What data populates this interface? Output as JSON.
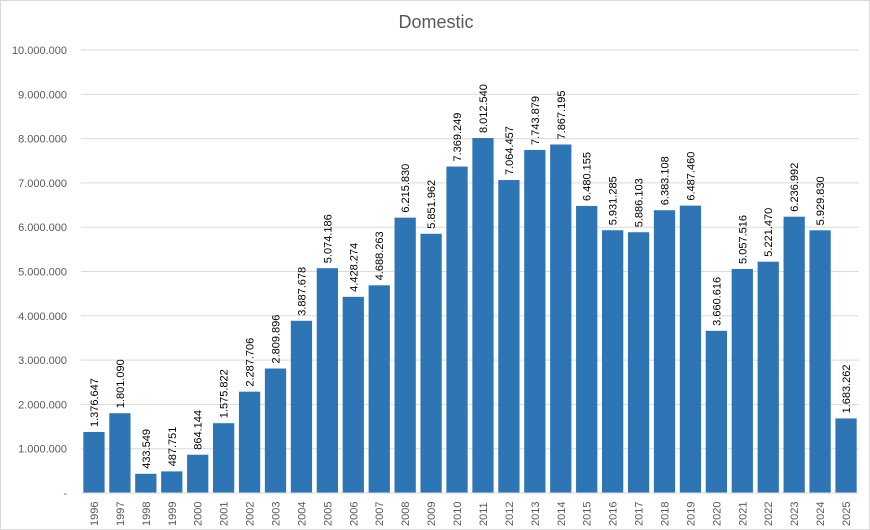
{
  "chart_data": {
    "type": "bar",
    "title": "Domestic",
    "xlabel": "",
    "ylabel": "",
    "ylim": [
      0,
      10000000
    ],
    "y_ticks": [
      {
        "value": 0,
        "label": "-"
      },
      {
        "value": 1000000,
        "label": "1.000.000"
      },
      {
        "value": 2000000,
        "label": "2.000.000"
      },
      {
        "value": 3000000,
        "label": "3.000.000"
      },
      {
        "value": 4000000,
        "label": "4.000.000"
      },
      {
        "value": 5000000,
        "label": "5.000.000"
      },
      {
        "value": 6000000,
        "label": "6.000.000"
      },
      {
        "value": 7000000,
        "label": "7.000.000"
      },
      {
        "value": 8000000,
        "label": "8.000.000"
      },
      {
        "value": 9000000,
        "label": "9.000.000"
      },
      {
        "value": 10000000,
        "label": "10.000.000"
      }
    ],
    "grid": true,
    "legend": "none",
    "bar_color": "#2e75b6",
    "grid_color": "#d9d9d9",
    "categories": [
      "1996",
      "1997",
      "1998",
      "1999",
      "2000",
      "2001",
      "2002",
      "2003",
      "2004",
      "2005",
      "2006",
      "2007",
      "2008",
      "2009",
      "2010",
      "2011",
      "2012",
      "2013",
      "2014",
      "2015",
      "2016",
      "2017",
      "2018",
      "2019",
      "2020",
      "2021",
      "2022",
      "2023",
      "2024",
      "2025"
    ],
    "values": [
      1376647,
      1801090,
      433549,
      487751,
      864144,
      1575822,
      2287706,
      2809896,
      3887678,
      5074186,
      4428274,
      4688263,
      6215830,
      5851962,
      7369249,
      8012540,
      7064457,
      7743879,
      7867195,
      6480155,
      5931285,
      5886103,
      6383108,
      6487460,
      3660616,
      5057516,
      5221470,
      6236992,
      5929830,
      1683262
    ],
    "value_labels": [
      "1.376.647",
      "1.801.090",
      "433.549",
      "487.751",
      "864.144",
      "1.575.822",
      "2.287.706",
      "2.809.896",
      "3.887.678",
      "5.074.186",
      "4.428.274",
      "4.688.263",
      "6.215.830",
      "5.851.962",
      "7.369.249",
      "8.012.540",
      "7.064.457",
      "7.743.879",
      "7.867.195",
      "6.480.155",
      "5.931.285",
      "5.886.103",
      "6.383.108",
      "6.487.460",
      "3.660.616",
      "5.057.516",
      "5.221.470",
      "6.236.992",
      "5.929.830",
      "1.683.262"
    ]
  }
}
